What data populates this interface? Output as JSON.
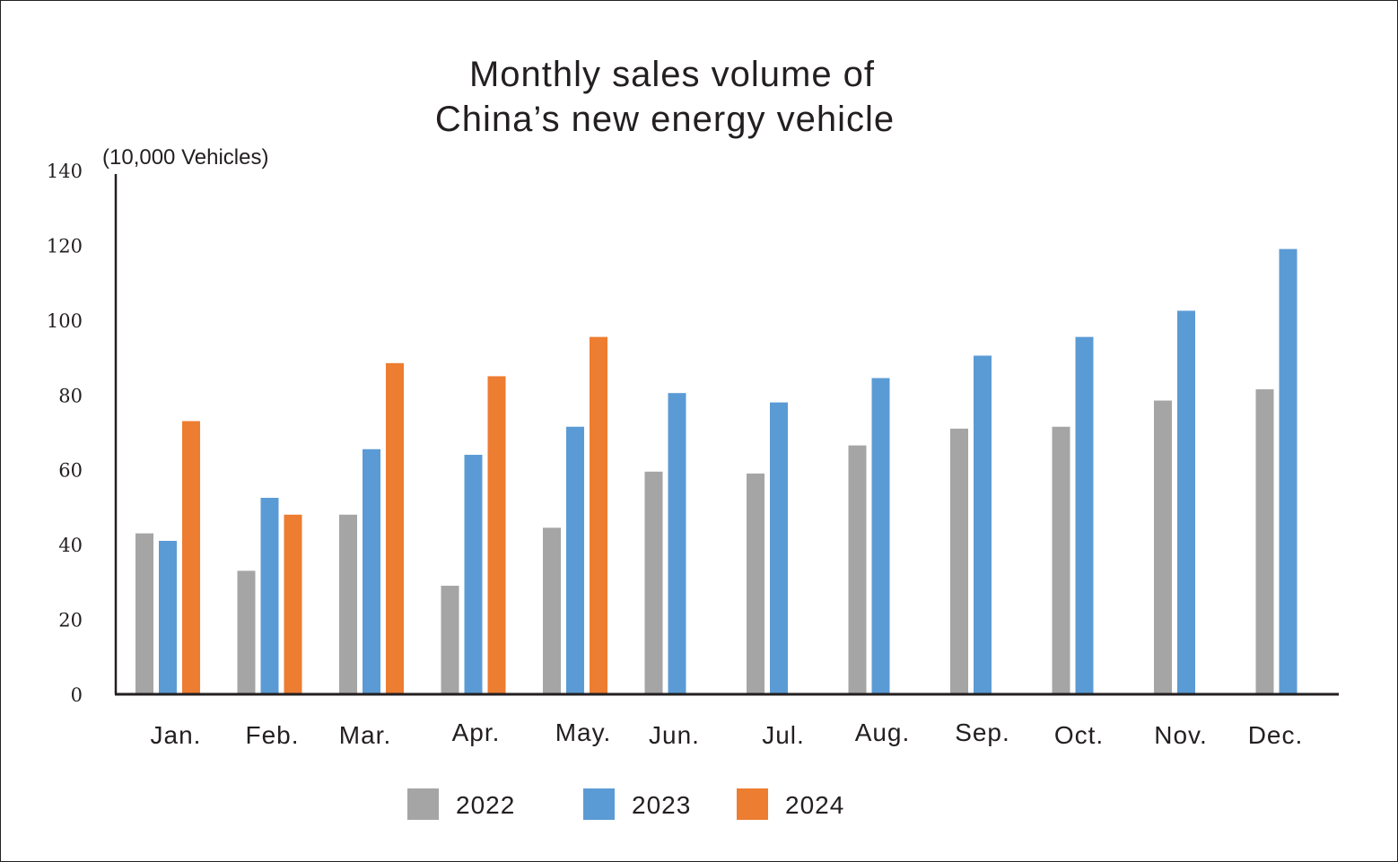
{
  "chart_data": {
    "type": "bar",
    "title": [
      "Monthly sales volume of",
      "China’s new energy vehicle"
    ],
    "unit_label": "(10,000 Vehicles)",
    "xlabel": "",
    "ylabel": "",
    "ylim": [
      0,
      140
    ],
    "yticks": [
      0,
      20,
      40,
      60,
      80,
      100,
      120,
      140
    ],
    "categories": [
      "Jan.",
      "Feb.",
      "Mar.",
      "Apr.",
      "May.",
      "Jun.",
      "Jul.",
      "Aug.",
      "Sep.",
      "Oct.",
      "Nov.",
      "Dec."
    ],
    "series": [
      {
        "name": "2022",
        "color": "#a5a5a5",
        "values": [
          43,
          33,
          48,
          29,
          44.5,
          59.5,
          59,
          66.5,
          71,
          71.5,
          78.5,
          81.5
        ]
      },
      {
        "name": "2023",
        "color": "#5b9bd5",
        "values": [
          41,
          52.5,
          65.5,
          64,
          71.5,
          80.5,
          78,
          84.5,
          90.5,
          95.5,
          102.5,
          119
        ]
      },
      {
        "name": "2024",
        "color": "#ed7d31",
        "values": [
          73,
          48,
          88.5,
          85,
          95.5,
          null,
          null,
          null,
          null,
          null,
          null,
          null
        ]
      }
    ],
    "legend_position": "bottom-center",
    "grid": false
  }
}
